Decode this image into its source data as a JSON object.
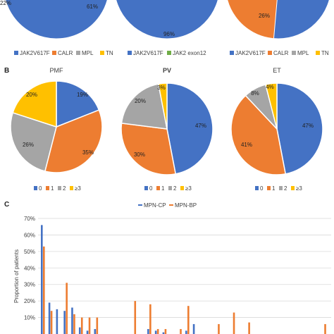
{
  "panels": [
    "B",
    "C"
  ],
  "colors": {
    "blue": "#4472C4",
    "orange": "#ED7D31",
    "gray": "#A5A5A5",
    "yellow": "#FFC000",
    "green": "#70AD47",
    "grid": "#D9D9D9",
    "text": "#404040"
  },
  "chart_data": [
    {
      "type": "pie",
      "panel": "A",
      "title": "",
      "slices": [
        {
          "label": "JAK2V617F",
          "value": 61,
          "text": "61%",
          "color": "#4472C4"
        },
        {
          "label": "CALR",
          "value": 0,
          "text": "",
          "color": "#ED7D31"
        },
        {
          "label": "MPL",
          "value": 0,
          "text": "",
          "color": "#A5A5A5"
        },
        {
          "label": "TN",
          "value": 0,
          "text": "",
          "color": "#FFC000"
        }
      ],
      "partial_labels": [
        "22%"
      ],
      "legend": [
        "JAK2V617F",
        "CALR",
        "MPL",
        "TN"
      ]
    },
    {
      "type": "pie",
      "panel": "A",
      "title": "",
      "slices": [
        {
          "label": "JAK2V617F",
          "value": 96,
          "text": "96%",
          "color": "#4472C4"
        },
        {
          "label": "JAK2 exon12",
          "value": 4,
          "text": "",
          "color": "#70AD47"
        }
      ],
      "legend": [
        "JAK2V617F",
        "JAK2 exon12"
      ]
    },
    {
      "type": "pie",
      "panel": "A",
      "title": "",
      "slices": [
        {
          "label": "JAK2V617F",
          "value": 0,
          "text": "",
          "color": "#4472C4"
        },
        {
          "label": "CALR",
          "value": 26,
          "text": "26%",
          "color": "#ED7D31"
        }
      ],
      "legend": [
        "JAK2V617F",
        "CALR",
        "MPL",
        "TN"
      ]
    },
    {
      "type": "pie",
      "panel": "B",
      "title": "PMF",
      "slices": [
        {
          "label": "0",
          "value": 19,
          "text": "19%",
          "color": "#4472C4"
        },
        {
          "label": "1",
          "value": 35,
          "text": "35%",
          "color": "#ED7D31"
        },
        {
          "label": "2",
          "value": 26,
          "text": "26%",
          "color": "#A5A5A5"
        },
        {
          "label": "≥3",
          "value": 20,
          "text": "20%",
          "color": "#FFC000"
        }
      ],
      "legend": [
        "0",
        "1",
        "2",
        "≥3"
      ]
    },
    {
      "type": "pie",
      "panel": "B",
      "title": "PV",
      "slices": [
        {
          "label": "0",
          "value": 47,
          "text": "47%",
          "color": "#4472C4"
        },
        {
          "label": "1",
          "value": 30,
          "text": "30%",
          "color": "#ED7D31"
        },
        {
          "label": "2",
          "value": 20,
          "text": "20%",
          "color": "#A5A5A5"
        },
        {
          "label": "≥3",
          "value": 3,
          "text": "3%",
          "color": "#FFC000"
        }
      ],
      "legend": [
        "0",
        "1",
        "2",
        "≥3"
      ]
    },
    {
      "type": "pie",
      "panel": "B",
      "title": "ET",
      "slices": [
        {
          "label": "0",
          "value": 47,
          "text": "47%",
          "color": "#4472C4"
        },
        {
          "label": "1",
          "value": 41,
          "text": "41%",
          "color": "#ED7D31"
        },
        {
          "label": "2",
          "value": 8,
          "text": "8%",
          "color": "#A5A5A5"
        },
        {
          "label": "≥3",
          "value": 4,
          "text": "4%",
          "color": "#FFC000"
        }
      ],
      "legend": [
        "0",
        "1",
        "2",
        "≥3"
      ]
    },
    {
      "type": "bar",
      "panel": "C",
      "title": "",
      "ylabel": "Proportion of patients",
      "ylim": [
        0,
        70
      ],
      "yticks": [
        10,
        20,
        30,
        40,
        50,
        60,
        70
      ],
      "ytick_labels": [
        "10%",
        "20%",
        "30%",
        "40%",
        "50%",
        "60%",
        "70%"
      ],
      "grid": true,
      "legend_position": "top",
      "series": [
        {
          "name": "MPN-CP",
          "color": "#4472C4",
          "values": [
            66,
            19,
            15,
            14,
            16,
            4,
            2,
            3,
            0,
            0,
            0,
            0,
            0,
            0,
            3,
            2,
            1,
            0,
            0,
            2,
            6,
            0,
            0,
            0,
            0,
            0,
            0,
            0,
            0,
            0,
            0,
            0,
            0,
            0,
            0,
            0,
            0,
            0
          ]
        },
        {
          "name": "MPN-BP",
          "color": "#ED7D31",
          "values": [
            53,
            14,
            0,
            31,
            12,
            10,
            10,
            10,
            0,
            0,
            0,
            0,
            20,
            0,
            18,
            3,
            3,
            0,
            3,
            17,
            0,
            0,
            0,
            6,
            0,
            13,
            0,
            7,
            0,
            0,
            0,
            0,
            0,
            0,
            0,
            0,
            0,
            6
          ]
        }
      ]
    }
  ],
  "legend_texts": {
    "a1": [
      "JAK2V617F",
      "CALR",
      "MPL",
      "TN"
    ],
    "a2": [
      "JAK2V617F",
      "JAK2 exon12"
    ],
    "a3": [
      "JAK2V617F",
      "CALR",
      "MPL",
      "TN"
    ],
    "b": [
      "0",
      "1",
      "2",
      "≥3"
    ],
    "c": [
      "MPN-CP",
      "MPN-BP"
    ]
  }
}
